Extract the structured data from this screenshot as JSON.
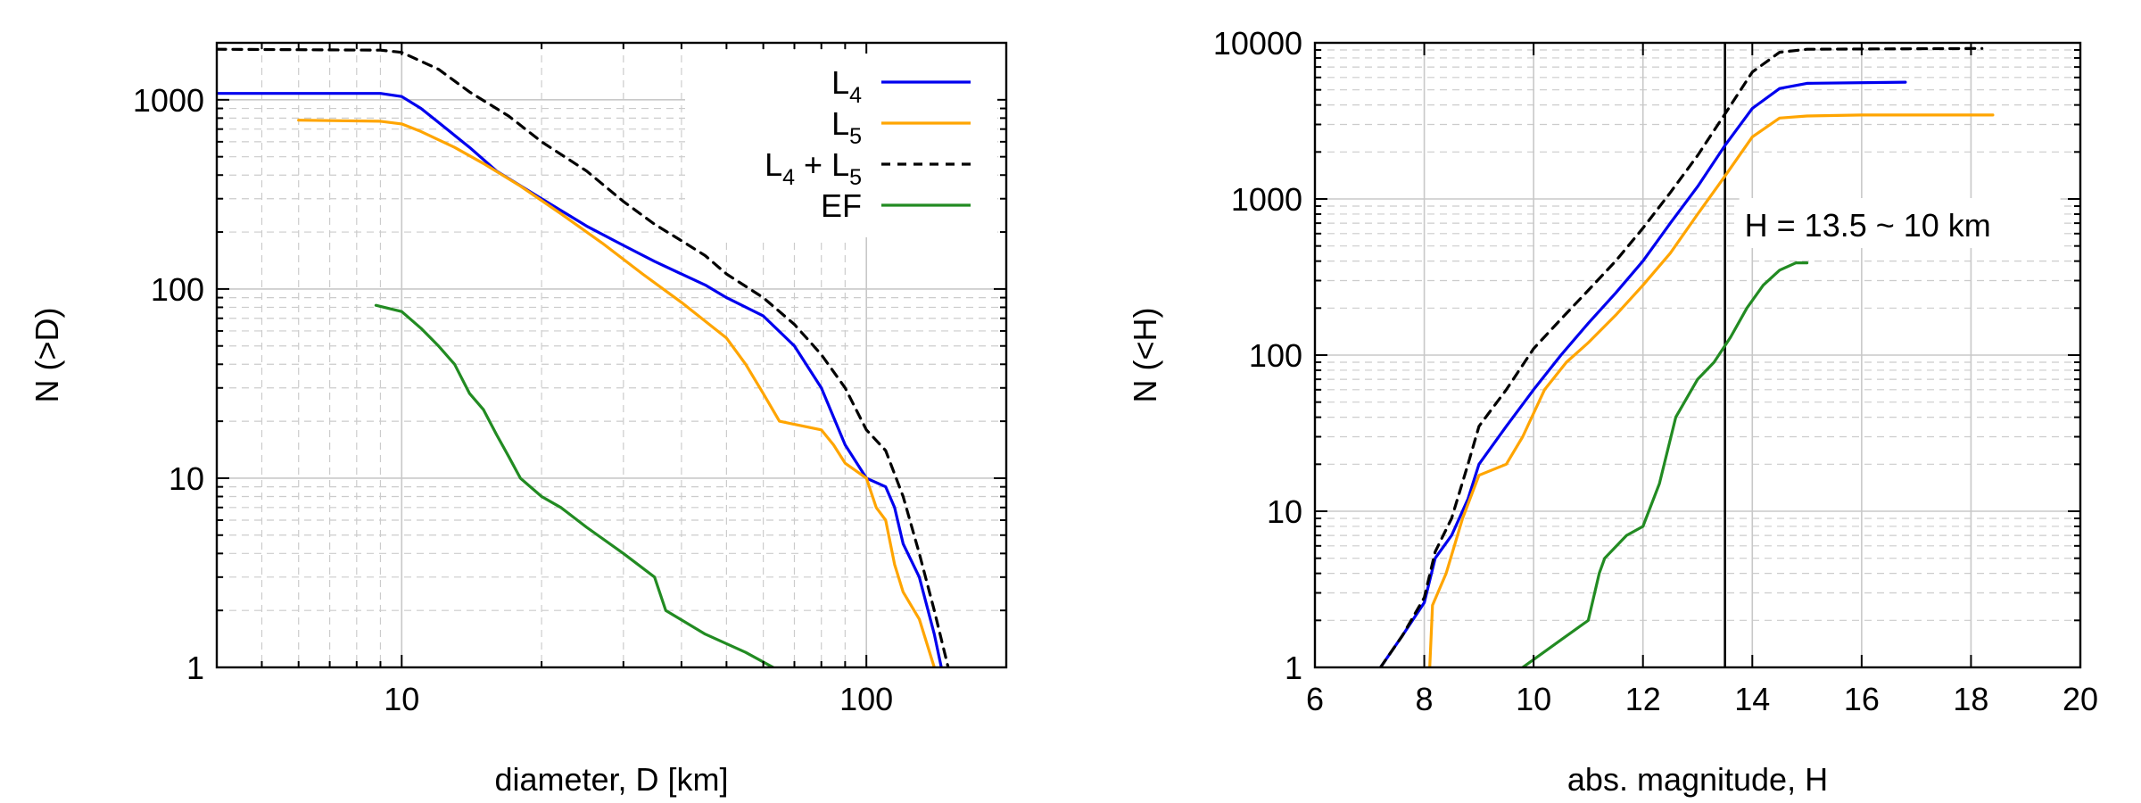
{
  "chart_data": [
    {
      "type": "line",
      "title": "",
      "xlabel": "diameter, D [km]",
      "ylabel": "N (>D)",
      "xscale": "log",
      "yscale": "log",
      "xlim": [
        4,
        200
      ],
      "ylim": [
        1,
        2000
      ],
      "grid": true,
      "legend_position": "top-right",
      "x_ticks": [
        {
          "value": 10,
          "label": "10"
        },
        {
          "value": 100,
          "label": "100"
        }
      ],
      "y_ticks": [
        {
          "value": 1,
          "label": "1"
        },
        {
          "value": 10,
          "label": "10"
        },
        {
          "value": 100,
          "label": "100"
        },
        {
          "value": 1000,
          "label": "1000"
        }
      ],
      "series": [
        {
          "name": "L4",
          "legend": {
            "base": "L",
            "sub": "4"
          },
          "color": "#0000ee",
          "dash": "solid",
          "points": [
            [
              4,
              1080
            ],
            [
              9,
              1080
            ],
            [
              10,
              1040
            ],
            [
              11,
              900
            ],
            [
              12,
              760
            ],
            [
              14,
              560
            ],
            [
              16,
              420
            ],
            [
              20,
              300
            ],
            [
              25,
              215
            ],
            [
              30,
              170
            ],
            [
              35,
              140
            ],
            [
              40,
              120
            ],
            [
              45,
              105
            ],
            [
              50,
              90
            ],
            [
              60,
              72
            ],
            [
              70,
              50
            ],
            [
              80,
              30
            ],
            [
              90,
              15
            ],
            [
              100,
              10
            ],
            [
              110,
              9
            ],
            [
              115,
              7
            ],
            [
              120,
              4.5
            ],
            [
              130,
              3
            ],
            [
              140,
              1.5
            ],
            [
              145,
              1
            ]
          ]
        },
        {
          "name": "L5",
          "legend": {
            "base": "L",
            "sub": "5"
          },
          "color": "#ffa500",
          "dash": "solid",
          "points": [
            [
              6,
              780
            ],
            [
              9,
              770
            ],
            [
              10,
              745
            ],
            [
              11,
              680
            ],
            [
              13,
              560
            ],
            [
              15,
              460
            ],
            [
              18,
              350
            ],
            [
              22,
              250
            ],
            [
              27,
              175
            ],
            [
              33,
              120
            ],
            [
              40,
              85
            ],
            [
              50,
              55
            ],
            [
              55,
              40
            ],
            [
              60,
              28
            ],
            [
              65,
              20
            ],
            [
              80,
              18
            ],
            [
              85,
              15
            ],
            [
              90,
              12
            ],
            [
              100,
              10
            ],
            [
              105,
              7
            ],
            [
              110,
              6
            ],
            [
              115,
              3.5
            ],
            [
              120,
              2.5
            ],
            [
              130,
              1.8
            ],
            [
              140,
              1
            ]
          ]
        },
        {
          "name": "L4 + L5",
          "legend": {
            "base": "L",
            "sub": "4",
            "plus": "+",
            "base2": "L",
            "sub2": "5"
          },
          "color": "#000000",
          "dash": "dashed",
          "points": [
            [
              4,
              1850
            ],
            [
              9,
              1830
            ],
            [
              10,
              1780
            ],
            [
              12,
              1450
            ],
            [
              14,
              1100
            ],
            [
              17,
              820
            ],
            [
              20,
              600
            ],
            [
              25,
              420
            ],
            [
              30,
              290
            ],
            [
              35,
              220
            ],
            [
              40,
              180
            ],
            [
              45,
              150
            ],
            [
              50,
              120
            ],
            [
              60,
              90
            ],
            [
              70,
              65
            ],
            [
              80,
              45
            ],
            [
              90,
              30
            ],
            [
              100,
              18
            ],
            [
              110,
              14
            ],
            [
              120,
              8
            ],
            [
              130,
              4
            ],
            [
              140,
              2
            ],
            [
              150,
              1
            ]
          ]
        },
        {
          "name": "EF",
          "legend": {
            "base": "EF"
          },
          "color": "#228b22",
          "dash": "solid",
          "points": [
            [
              8.8,
              82
            ],
            [
              10,
              76
            ],
            [
              11,
              62
            ],
            [
              12,
              50
            ],
            [
              13,
              40
            ],
            [
              14,
              28
            ],
            [
              15,
              23
            ],
            [
              16,
              17
            ],
            [
              17,
              13
            ],
            [
              18,
              10
            ],
            [
              20,
              8
            ],
            [
              22,
              7
            ],
            [
              25,
              5.5
            ],
            [
              30,
              4
            ],
            [
              35,
              3
            ],
            [
              37,
              2
            ],
            [
              45,
              1.5
            ],
            [
              55,
              1.2
            ],
            [
              63,
              1
            ]
          ]
        }
      ]
    },
    {
      "type": "line",
      "title": "",
      "xlabel": "abs. magnitude, H",
      "ylabel": "N (<H)",
      "xscale": "linear",
      "yscale": "log",
      "xlim": [
        6,
        20
      ],
      "ylim": [
        1,
        10000
      ],
      "grid": true,
      "x_ticks": [
        {
          "value": 6,
          "label": "6"
        },
        {
          "value": 8,
          "label": "8"
        },
        {
          "value": 10,
          "label": "10"
        },
        {
          "value": 12,
          "label": "12"
        },
        {
          "value": 14,
          "label": "14"
        },
        {
          "value": 16,
          "label": "16"
        },
        {
          "value": 18,
          "label": "18"
        },
        {
          "value": 20,
          "label": "20"
        }
      ],
      "y_ticks": [
        {
          "value": 1,
          "label": "1"
        },
        {
          "value": 10,
          "label": "10"
        },
        {
          "value": 100,
          "label": "100"
        },
        {
          "value": 1000,
          "label": "1000"
        },
        {
          "value": 10000,
          "label": "10000"
        }
      ],
      "vline": {
        "x": 13.5,
        "label": "H = 13.5 ~ 10 km"
      },
      "series": [
        {
          "name": "L4",
          "color": "#0000ee",
          "dash": "solid",
          "points": [
            [
              7.2,
              1
            ],
            [
              7.6,
              1.6
            ],
            [
              8,
              2.6
            ],
            [
              8.2,
              5
            ],
            [
              8.5,
              7
            ],
            [
              8.8,
              12
            ],
            [
              9,
              20
            ],
            [
              9.5,
              35
            ],
            [
              10,
              60
            ],
            [
              10.5,
              100
            ],
            [
              11,
              160
            ],
            [
              11.5,
              250
            ],
            [
              12,
              400
            ],
            [
              12.5,
              700
            ],
            [
              13,
              1200
            ],
            [
              13.5,
              2200
            ],
            [
              14,
              3800
            ],
            [
              14.5,
              5100
            ],
            [
              15,
              5500
            ],
            [
              16.8,
              5600
            ]
          ]
        },
        {
          "name": "L5",
          "color": "#ffa500",
          "dash": "solid",
          "points": [
            [
              8.1,
              1
            ],
            [
              8.15,
              2.5
            ],
            [
              8.4,
              4
            ],
            [
              8.7,
              9
            ],
            [
              9,
              17
            ],
            [
              9.5,
              20
            ],
            [
              9.8,
              30
            ],
            [
              10.2,
              60
            ],
            [
              10.6,
              90
            ],
            [
              11,
              120
            ],
            [
              11.5,
              180
            ],
            [
              12,
              280
            ],
            [
              12.5,
              450
            ],
            [
              13,
              800
            ],
            [
              13.5,
              1400
            ],
            [
              14,
              2500
            ],
            [
              14.5,
              3300
            ],
            [
              15,
              3400
            ],
            [
              16,
              3450
            ],
            [
              18.4,
              3450
            ]
          ]
        },
        {
          "name": "L4 + L5",
          "color": "#000000",
          "dash": "dashed",
          "points": [
            [
              7.2,
              1
            ],
            [
              7.6,
              1.6
            ],
            [
              8,
              2.8
            ],
            [
              8.2,
              5.5
            ],
            [
              8.5,
              9
            ],
            [
              8.8,
              20
            ],
            [
              9,
              35
            ],
            [
              9.5,
              60
            ],
            [
              10,
              110
            ],
            [
              10.5,
              170
            ],
            [
              11,
              260
            ],
            [
              11.5,
              400
            ],
            [
              12,
              650
            ],
            [
              12.5,
              1100
            ],
            [
              13,
              1900
            ],
            [
              13.5,
              3500
            ],
            [
              14,
              6500
            ],
            [
              14.5,
              8700
            ],
            [
              15,
              9100
            ],
            [
              18.2,
              9200
            ]
          ]
        },
        {
          "name": "EF",
          "color": "#228b22",
          "dash": "solid",
          "points": [
            [
              9.8,
              1
            ],
            [
              10.5,
              1.5
            ],
            [
              11,
              2
            ],
            [
              11.2,
              4
            ],
            [
              11.3,
              5
            ],
            [
              11.7,
              7
            ],
            [
              12,
              8
            ],
            [
              12.3,
              15
            ],
            [
              12.6,
              40
            ],
            [
              13,
              70
            ],
            [
              13.3,
              90
            ],
            [
              13.6,
              130
            ],
            [
              13.9,
              200
            ],
            [
              14.2,
              280
            ],
            [
              14.5,
              350
            ],
            [
              14.8,
              390
            ],
            [
              15,
              390
            ]
          ]
        }
      ]
    }
  ]
}
